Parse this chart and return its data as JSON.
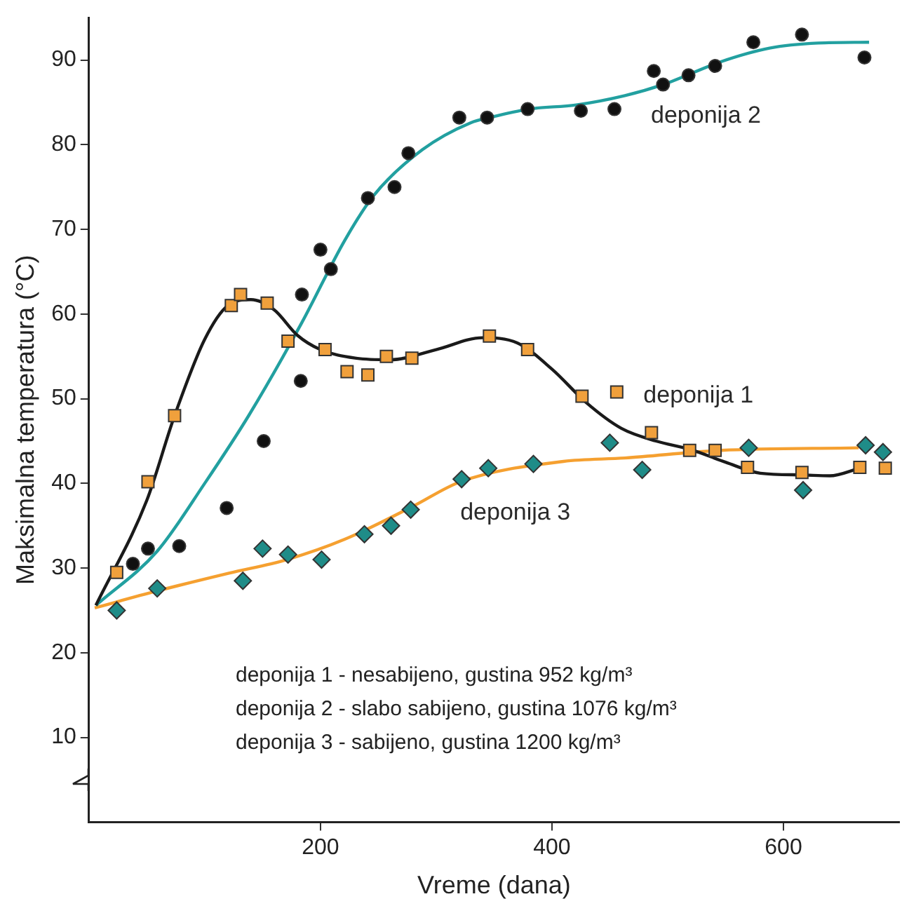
{
  "chart_data": {
    "type": "scatter",
    "xlabel": "Vreme (dana)",
    "ylabel": "Maksimalna temperatura (°C)",
    "xlim": [
      0,
      700
    ],
    "xticks": [
      200,
      400,
      600
    ],
    "ylim": [
      0,
      95
    ],
    "yticks": [
      10,
      20,
      30,
      40,
      50,
      60,
      70,
      80,
      90
    ],
    "grid": false,
    "legend": false,
    "annotations": [
      "deponija 1 - nesabijeno, gustina 952 kg/m³",
      "deponija 2 - slabo sabijeno, gustina 1076 kg/m³",
      "deponija 3 - sabijeno, gustina 1200 kg/m³"
    ],
    "series": [
      {
        "name": "deponija 1",
        "type": "scatter",
        "marker": "square",
        "color": "#f0a03c",
        "x": [
          24,
          51,
          74,
          123,
          131,
          154,
          172,
          204,
          223,
          241,
          257,
          279,
          346,
          379,
          426,
          456,
          486,
          519,
          541,
          569,
          616,
          666,
          688
        ],
        "values": [
          29.5,
          40.2,
          48,
          61,
          62.3,
          61.3,
          56.8,
          55.8,
          53.2,
          52.8,
          55,
          54.8,
          57.4,
          55.8,
          50.3,
          50.8,
          46,
          43.9,
          43.9,
          41.9,
          41.3,
          41.9,
          41.8
        ]
      },
      {
        "name": "deponija 2",
        "type": "scatter",
        "marker": "circle",
        "color": "#111111",
        "x": [
          38,
          51,
          78,
          119,
          151,
          183,
          184,
          200,
          209,
          241,
          264,
          276,
          320,
          344,
          379,
          425,
          454,
          488,
          496,
          518,
          541,
          574,
          616,
          670
        ],
        "values": [
          30.5,
          32.3,
          32.6,
          37.1,
          45,
          52.1,
          62.3,
          67.6,
          65.3,
          73.7,
          75,
          79,
          83.2,
          83.2,
          84.2,
          84,
          84.2,
          88.7,
          87.1,
          88.2,
          89.3,
          92.1,
          93,
          90.3
        ]
      },
      {
        "name": "deponija 3",
        "type": "scatter",
        "marker": "diamond",
        "color": "#1f8c88",
        "x": [
          24,
          59,
          133,
          150,
          172,
          201,
          238,
          261,
          278,
          322,
          345,
          384,
          450,
          478,
          570,
          617,
          671,
          686
        ],
        "values": [
          25,
          27.6,
          28.5,
          32.3,
          31.6,
          31,
          34,
          35,
          36.9,
          40.5,
          41.8,
          42.3,
          44.8,
          41.6,
          44.2,
          39.2,
          44.5,
          43.7
        ]
      },
      {
        "type": "line",
        "marker": "none",
        "color": "#1a1a1a",
        "x": [
          6,
          50,
          74,
          100,
          120,
          140,
          160,
          180,
          200,
          230,
          260,
          300,
          340,
          370,
          400,
          430,
          460,
          490,
          520,
          550,
          580,
          616,
          640,
          666
        ],
        "values": [
          25.6,
          38,
          48,
          57,
          61,
          61.7,
          60.5,
          57.5,
          55.8,
          54.8,
          54.6,
          55.8,
          57.2,
          56.6,
          53.5,
          49.5,
          46.5,
          45,
          44,
          42.5,
          41.2,
          41,
          40.9,
          41.8
        ]
      },
      {
        "type": "line",
        "marker": "none",
        "color": "#22a0a0",
        "x": [
          6,
          59,
          100,
          138,
          184,
          221,
          246,
          288,
          330,
          346,
          380,
          421,
          463,
          496,
          546,
          588,
          630,
          674
        ],
        "values": [
          25.6,
          32,
          40,
          48,
          59,
          68.7,
          74,
          79.4,
          82.6,
          83.2,
          84.2,
          84.7,
          85.8,
          87.1,
          89.8,
          91.4,
          92,
          92.1
        ]
      },
      {
        "type": "line",
        "marker": "none",
        "color": "#f5a030",
        "x": [
          5,
          59,
          121,
          171,
          221,
          280,
          321,
          410,
          463,
          546,
          665
        ],
        "values": [
          25.3,
          27.3,
          29.4,
          31,
          33.4,
          37.3,
          40.2,
          42.6,
          43,
          43.9,
          44.2
        ]
      }
    ]
  }
}
